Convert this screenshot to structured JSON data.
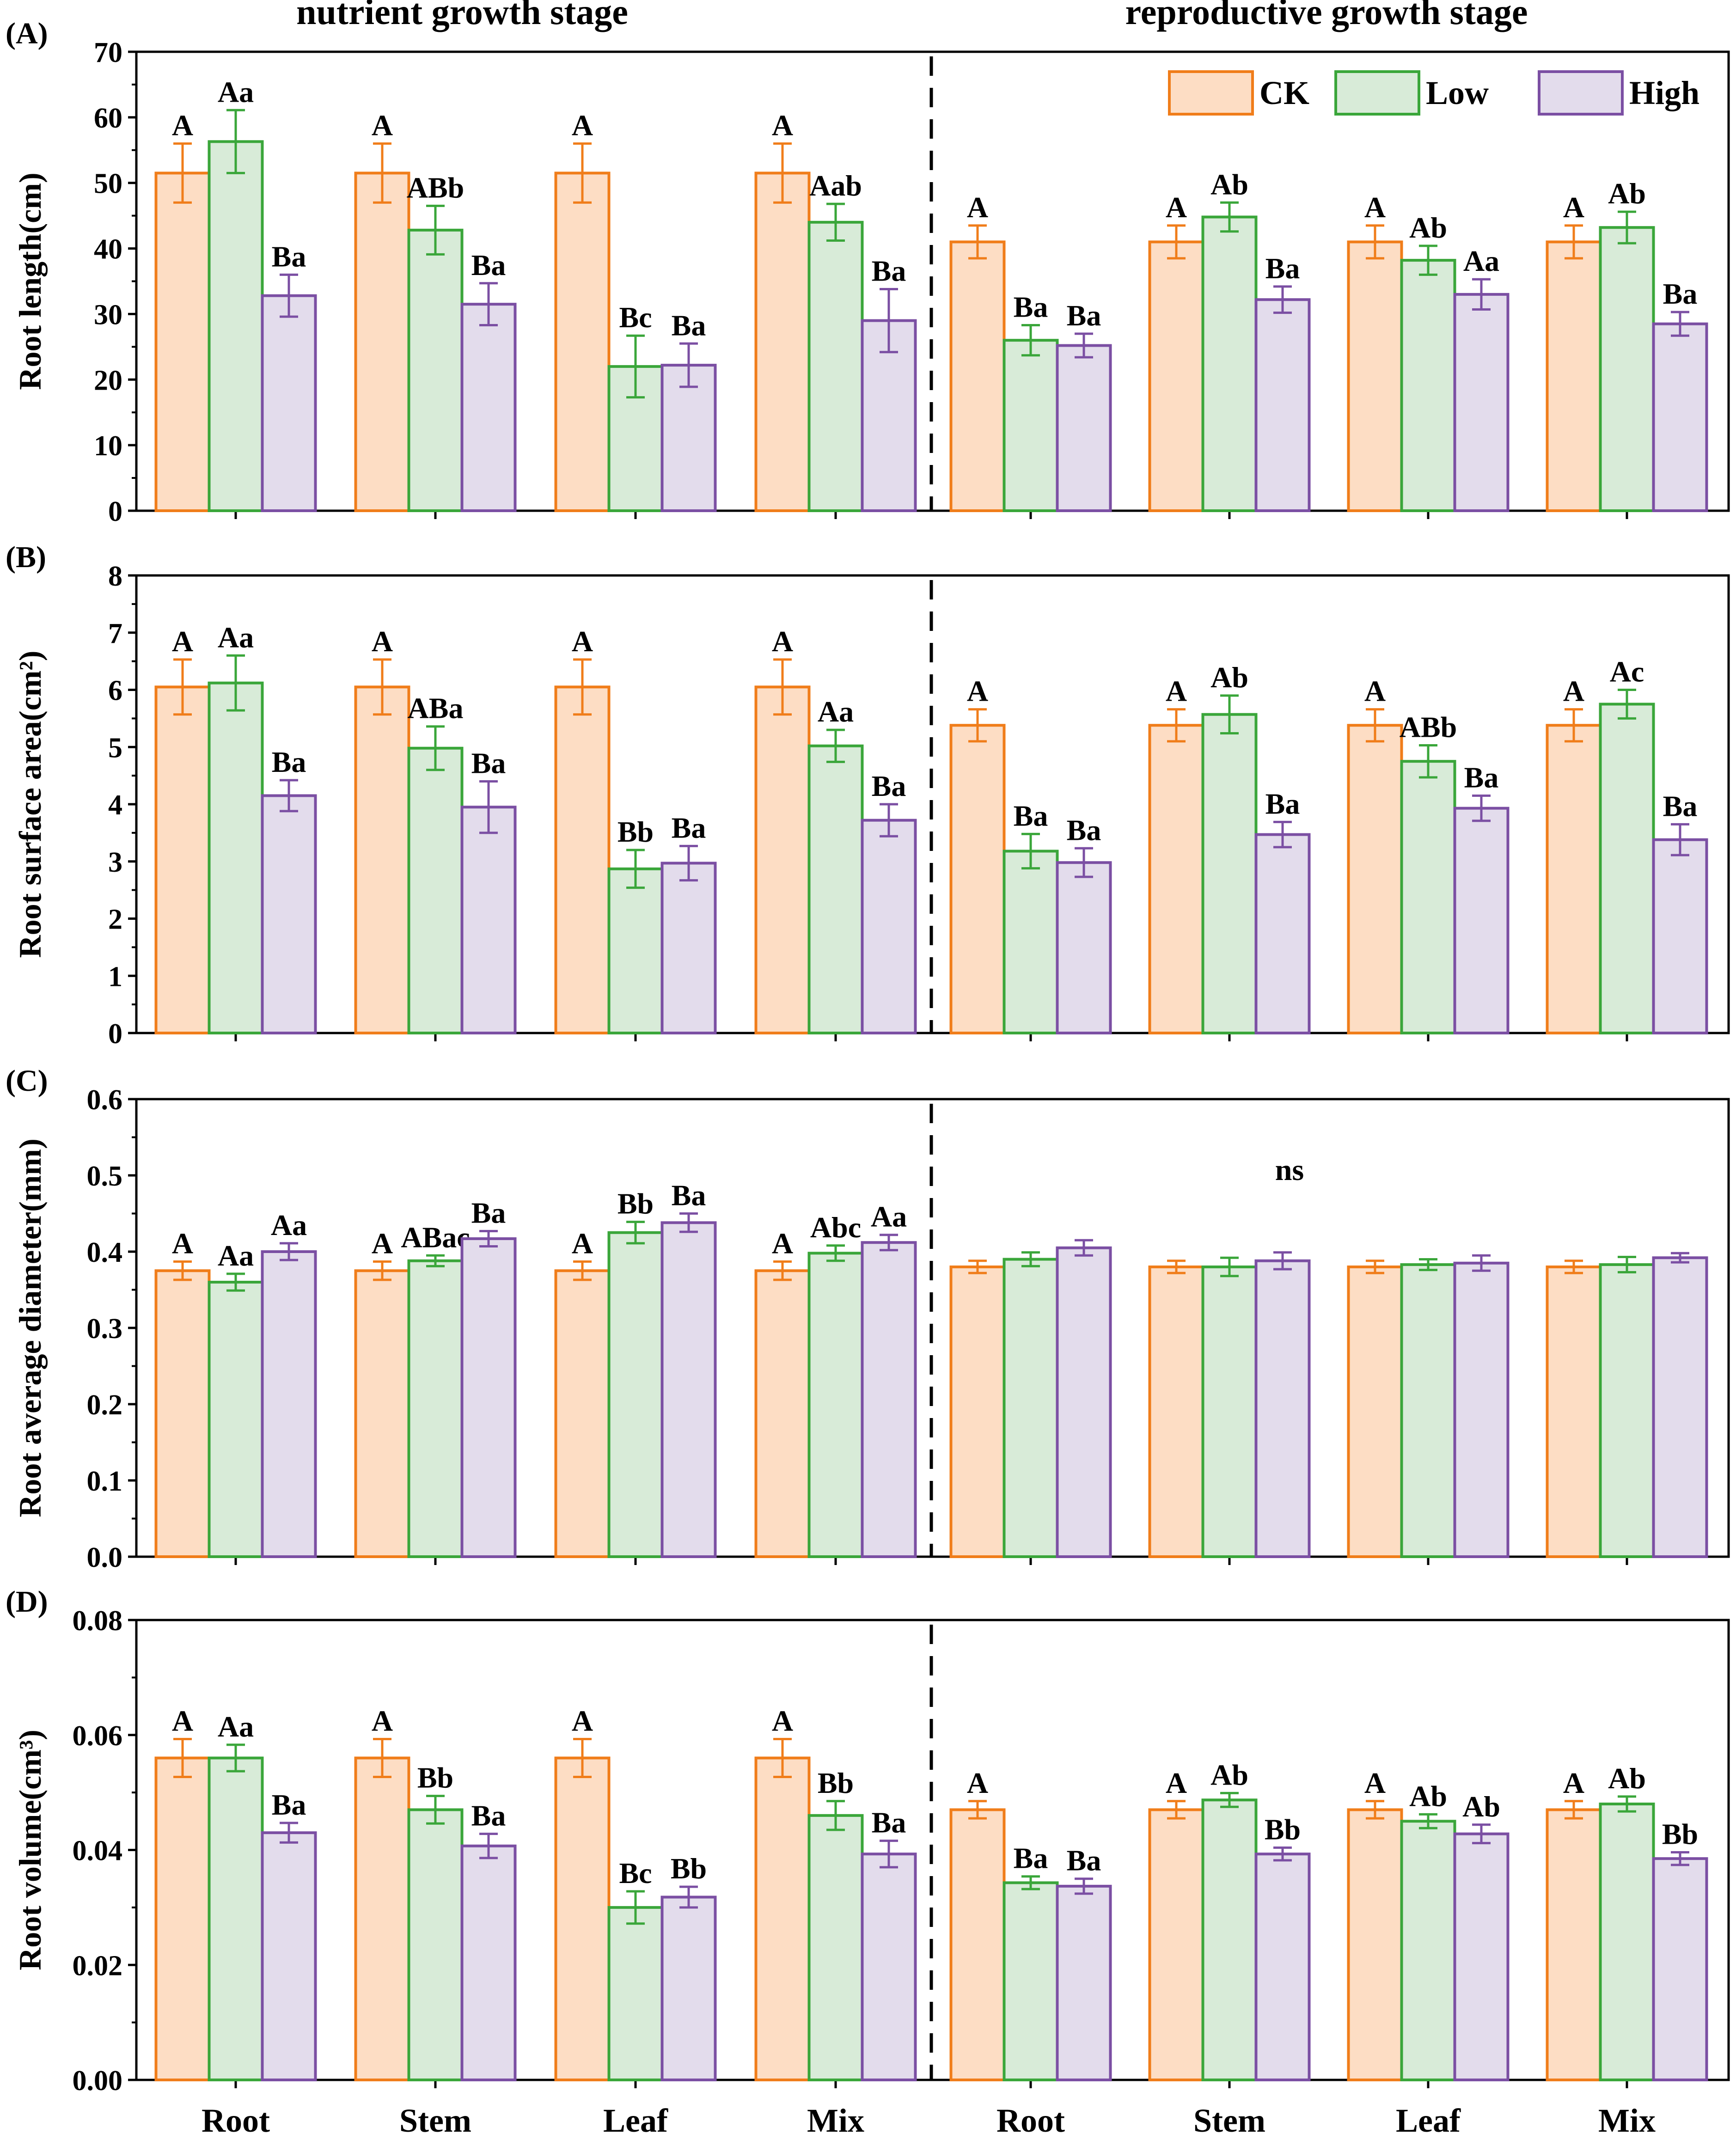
{
  "figure": {
    "stage_left": "nutrient growth stage",
    "stage_right": "reproductive growth stage",
    "x_categories": [
      "Root",
      "Stem",
      "Leaf",
      "Mix",
      "Root",
      "Stem",
      "Leaf",
      "Mix"
    ],
    "legend": [
      {
        "name": "CK",
        "stroke": "#f07d1a",
        "fill": "#fdddc4"
      },
      {
        "name": "Low",
        "stroke": "#3aa63a",
        "fill": "#d8ebd8"
      },
      {
        "name": "High",
        "stroke": "#7b4fa3",
        "fill": "#e3dcec"
      }
    ]
  },
  "chart_data": [
    {
      "type": "bar",
      "panel": "(A)",
      "ylabel": "Root length(cm)",
      "ylim": [
        0,
        70
      ],
      "yticks": [
        0,
        10,
        20,
        30,
        40,
        50,
        60,
        70
      ],
      "ytick_labels": [
        "0",
        "10",
        "20",
        "30",
        "40",
        "50",
        "60",
        "70"
      ],
      "categories": [
        "Root",
        "Stem",
        "Leaf",
        "Mix",
        "Root",
        "Stem",
        "Leaf",
        "Mix"
      ],
      "series": [
        {
          "name": "CK",
          "values": [
            51.5,
            51.5,
            51.5,
            51.5,
            41,
            41,
            41,
            41
          ],
          "errors": [
            4.5,
            4.5,
            4.5,
            4.5,
            2.5,
            2.5,
            2.5,
            2.5
          ],
          "labels": [
            "A",
            "A",
            "A",
            "A",
            "A",
            "A",
            "A",
            "A"
          ]
        },
        {
          "name": "Low",
          "values": [
            56.3,
            42.8,
            22,
            44,
            26,
            44.8,
            38.2,
            43.2
          ],
          "errors": [
            4.8,
            3.7,
            4.7,
            2.8,
            2.3,
            2.2,
            2.2,
            2.4
          ],
          "labels": [
            "Aa",
            "ABb",
            "Bc",
            "Aab",
            "Ba",
            "Ab",
            "Ab",
            "Ab"
          ]
        },
        {
          "name": "High",
          "values": [
            32.8,
            31.5,
            22.2,
            29,
            25.2,
            32.2,
            33,
            28.5
          ],
          "errors": [
            3.2,
            3.2,
            3.3,
            4.8,
            1.8,
            2,
            2.3,
            1.8
          ],
          "labels": [
            "Ba",
            "Ba",
            "Ba",
            "Ba",
            "Ba",
            "Ba",
            "Aa",
            "Ba"
          ]
        }
      ]
    },
    {
      "type": "bar",
      "panel": "(B)",
      "ylabel": "Root surface area(cm²)",
      "ylim": [
        0,
        8
      ],
      "yticks": [
        0,
        1,
        2,
        3,
        4,
        5,
        6,
        7,
        8
      ],
      "ytick_labels": [
        "0",
        "1",
        "2",
        "3",
        "4",
        "5",
        "6",
        "7",
        "8"
      ],
      "categories": [
        "Root",
        "Stem",
        "Leaf",
        "Mix",
        "Root",
        "Stem",
        "Leaf",
        "Mix"
      ],
      "series": [
        {
          "name": "CK",
          "values": [
            6.05,
            6.05,
            6.05,
            6.05,
            5.38,
            5.38,
            5.38,
            5.38
          ],
          "errors": [
            0.48,
            0.48,
            0.48,
            0.48,
            0.28,
            0.28,
            0.28,
            0.28
          ],
          "labels": [
            "A",
            "A",
            "A",
            "A",
            "A",
            "A",
            "A",
            "A"
          ]
        },
        {
          "name": "Low",
          "values": [
            6.12,
            4.98,
            2.87,
            5.02,
            3.18,
            5.57,
            4.75,
            5.75
          ],
          "errors": [
            0.48,
            0.38,
            0.33,
            0.28,
            0.3,
            0.33,
            0.28,
            0.25
          ],
          "labels": [
            "Aa",
            "ABa",
            "Bb",
            "Aa",
            "Ba",
            "Ab",
            "ABb",
            "Ac"
          ]
        },
        {
          "name": "High",
          "values": [
            4.15,
            3.95,
            2.97,
            3.72,
            2.98,
            3.47,
            3.93,
            3.38
          ],
          "errors": [
            0.27,
            0.45,
            0.3,
            0.28,
            0.25,
            0.22,
            0.22,
            0.27
          ],
          "labels": [
            "Ba",
            "Ba",
            "Ba",
            "Ba",
            "Ba",
            "Ba",
            "Ba",
            "Ba"
          ]
        }
      ]
    },
    {
      "type": "bar",
      "panel": "(C)",
      "ylabel": "Root average diameter(mm)",
      "ylim": [
        0,
        0.6
      ],
      "yticks": [
        0,
        0.1,
        0.2,
        0.3,
        0.4,
        0.5,
        0.6
      ],
      "ytick_labels": [
        "0.0",
        "0.1",
        "0.2",
        "0.3",
        "0.4",
        "0.5",
        "0.6"
      ],
      "annotation": "ns",
      "categories": [
        "Root",
        "Stem",
        "Leaf",
        "Mix",
        "Root",
        "Stem",
        "Leaf",
        "Mix"
      ],
      "series": [
        {
          "name": "CK",
          "values": [
            0.375,
            0.375,
            0.375,
            0.375,
            0.38,
            0.38,
            0.38,
            0.38
          ],
          "errors": [
            0.012,
            0.012,
            0.012,
            0.012,
            0.008,
            0.008,
            0.008,
            0.008
          ],
          "labels": [
            "A",
            "A",
            "A",
            "A",
            "",
            "",
            "",
            ""
          ]
        },
        {
          "name": "Low",
          "values": [
            0.36,
            0.388,
            0.425,
            0.398,
            0.39,
            0.38,
            0.383,
            0.383
          ],
          "errors": [
            0.011,
            0.007,
            0.014,
            0.01,
            0.009,
            0.012,
            0.007,
            0.01
          ],
          "labels": [
            "Aa",
            "ABac",
            "Bb",
            "Abc",
            "",
            "",
            "",
            ""
          ]
        },
        {
          "name": "High",
          "values": [
            0.4,
            0.417,
            0.438,
            0.412,
            0.405,
            0.388,
            0.385,
            0.392
          ],
          "errors": [
            0.011,
            0.01,
            0.012,
            0.01,
            0.01,
            0.011,
            0.01,
            0.006
          ],
          "labels": [
            "Aa",
            "Ba",
            "Ba",
            "Aa",
            "",
            "",
            "",
            ""
          ]
        }
      ]
    },
    {
      "type": "bar",
      "panel": "(D)",
      "ylabel": "Root volume(cm³)",
      "ylim": [
        0,
        0.08
      ],
      "yticks": [
        0,
        0.02,
        0.04,
        0.06,
        0.08
      ],
      "ytick_labels": [
        "0.00",
        "0.02",
        "0.04",
        "0.06",
        "0.08"
      ],
      "categories": [
        "Root",
        "Stem",
        "Leaf",
        "Mix",
        "Root",
        "Stem",
        "Leaf",
        "Mix"
      ],
      "series": [
        {
          "name": "CK",
          "values": [
            0.056,
            0.056,
            0.056,
            0.056,
            0.047,
            0.047,
            0.047,
            0.047
          ],
          "errors": [
            0.0033,
            0.0033,
            0.0033,
            0.0033,
            0.0015,
            0.0015,
            0.0015,
            0.0015
          ],
          "labels": [
            "A",
            "A",
            "A",
            "A",
            "A",
            "A",
            "A",
            "A"
          ]
        },
        {
          "name": "Low",
          "values": [
            0.056,
            0.047,
            0.03,
            0.046,
            0.0343,
            0.0487,
            0.045,
            0.048
          ],
          "errors": [
            0.0023,
            0.0024,
            0.0028,
            0.0025,
            0.0011,
            0.0012,
            0.0012,
            0.0013
          ],
          "labels": [
            "Aa",
            "Bb",
            "Bc",
            "Bb",
            "Ba",
            "Ab",
            "Ab",
            "Ab"
          ]
        },
        {
          "name": "High",
          "values": [
            0.043,
            0.0407,
            0.0318,
            0.0393,
            0.0337,
            0.0393,
            0.0428,
            0.0385
          ],
          "errors": [
            0.0017,
            0.0021,
            0.0018,
            0.0023,
            0.0013,
            0.0011,
            0.0016,
            0.0011
          ],
          "labels": [
            "Ba",
            "Ba",
            "Bb",
            "Ba",
            "Ba",
            "Bb",
            "Ab",
            "Bb"
          ]
        }
      ]
    }
  ]
}
